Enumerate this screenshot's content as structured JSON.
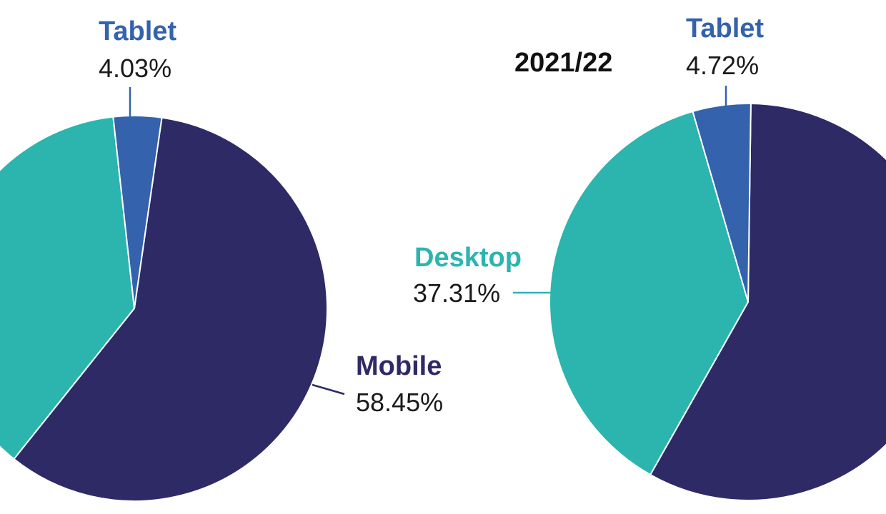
{
  "chart_data": [
    {
      "type": "pie",
      "title": "",
      "slices": [
        {
          "label": "Mobile",
          "value_text": "58.45%",
          "value": 58.45,
          "color": "#2e2a66"
        },
        {
          "label": "Desktop",
          "value_text": "",
          "value": 37.52,
          "color": "#2bb5ae"
        },
        {
          "label": "Tablet",
          "value_text": "4.03%",
          "value": 4.03,
          "color": "#3462ad"
        }
      ]
    },
    {
      "type": "pie",
      "title": "2021/22",
      "slices": [
        {
          "label": "Mobile",
          "value_text": "",
          "value": 57.97,
          "color": "#2e2a66"
        },
        {
          "label": "Desktop",
          "value_text": "37.31%",
          "value": 37.31,
          "color": "#2bb5ae"
        },
        {
          "label": "Tablet",
          "value_text": "4.72%",
          "value": 4.72,
          "color": "#3462ad"
        }
      ]
    }
  ]
}
